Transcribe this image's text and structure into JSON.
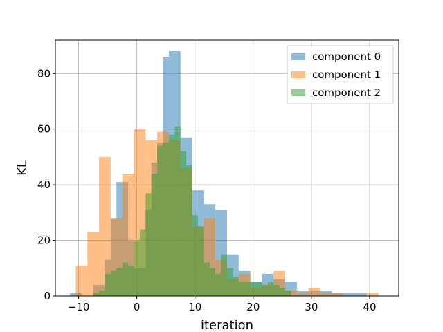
{
  "chart_data": {
    "type": "bar",
    "subtype": "overlaid-histogram",
    "title": "",
    "xlabel": "iteration",
    "ylabel": "KL",
    "xlim": [
      -14,
      45
    ],
    "ylim": [
      0,
      92
    ],
    "xticks": [
      -10,
      0,
      10,
      20,
      30,
      40
    ],
    "yticks": [
      0,
      20,
      40,
      60,
      80
    ],
    "grid": true,
    "legend_position": "top-right",
    "series": [
      {
        "name": "component 0",
        "color": "#1f77b4",
        "opacity": 0.5,
        "bin_edges": [
          -11.5,
          -9.5,
          -7.5,
          -5.5,
          -4.5,
          -3.5,
          -1.5,
          -0.5,
          0.5,
          1.5,
          2.5,
          3.5,
          4.5,
          5.5,
          7.5,
          9.5,
          11.5,
          13.5,
          15.5,
          17.5,
          19.5,
          21.5,
          23.5,
          25.5,
          27.5,
          29.5,
          31.5,
          33.5,
          35.5,
          37.5,
          39.5
        ],
        "counts": [
          1,
          0,
          4,
          13,
          28,
          41,
          20,
          10,
          10,
          31,
          48,
          55,
          86,
          88,
          57,
          38,
          33,
          31,
          15,
          9,
          5,
          8,
          6,
          5,
          2,
          2,
          2,
          1,
          1,
          1
        ]
      },
      {
        "name": "component 1",
        "color": "#ff7f0e",
        "opacity": 0.5,
        "bin_edges": [
          -10.5,
          -8.5,
          -6.5,
          -4.5,
          -2.5,
          -0.5,
          1.5,
          3.5,
          5.5,
          7.5,
          9.5,
          11.5,
          13.5,
          15.5,
          17.5,
          19.5,
          21.5,
          23.5,
          25.5,
          27.5,
          29.5,
          31.5,
          33.5,
          35.5,
          37.5,
          39.5,
          41.5
        ],
        "counts": [
          11,
          23,
          50,
          28,
          44,
          60,
          56,
          59,
          56,
          46,
          25,
          28,
          13,
          6,
          8,
          3,
          4,
          9,
          2,
          1,
          3,
          1,
          1,
          0,
          0,
          1
        ]
      },
      {
        "name": "component 2",
        "color": "#2ca02c",
        "opacity": 0.5,
        "bin_edges": [
          -7.5,
          -6.5,
          -5.5,
          -4.5,
          -3.5,
          -2.5,
          -1.5,
          -0.5,
          0.5,
          1.5,
          2.5,
          3.5,
          4.5,
          5.5,
          6.5,
          7.5,
          8.5,
          9.5,
          10.5,
          11.5,
          12.5,
          13.5,
          14.5,
          15.5,
          16.5,
          17.5,
          18.5,
          19.5,
          20.5,
          21.5,
          22.5,
          23.5,
          24.5,
          25.5,
          26.5
        ],
        "counts": [
          1,
          2,
          8,
          9,
          10,
          12,
          11,
          20,
          24,
          37,
          44,
          54,
          55,
          58,
          61,
          52,
          47,
          29,
          25,
          12,
          10,
          8,
          15,
          10,
          7,
          5,
          5,
          5,
          5,
          4,
          5,
          4,
          3,
          2
        ]
      }
    ]
  }
}
